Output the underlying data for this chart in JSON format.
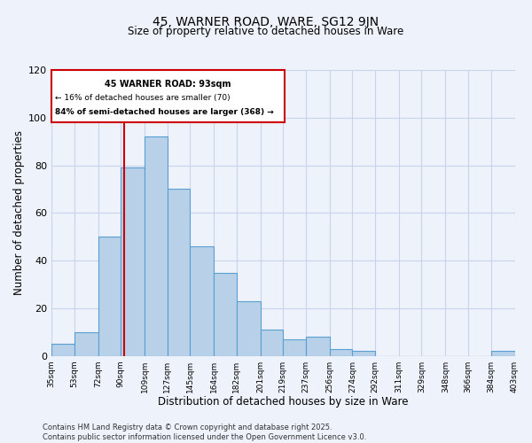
{
  "title_line1": "45, WARNER ROAD, WARE, SG12 9JN",
  "title_line2": "Size of property relative to detached houses in Ware",
  "xlabel": "Distribution of detached houses by size in Ware",
  "ylabel": "Number of detached properties",
  "bar_color": "#b8d0e8",
  "bar_edge_color": "#5a9fd4",
  "background_color": "#eef2fa",
  "grid_color": "#c8d4ee",
  "vline_x": 93,
  "vline_color": "#cc0000",
  "annotation_title": "45 WARNER ROAD: 93sqm",
  "annotation_line2": "← 16% of detached houses are smaller (70)",
  "annotation_line3": "84% of semi-detached houses are larger (368) →",
  "annotation_box_color": "#cc0000",
  "footer_line1": "Contains HM Land Registry data © Crown copyright and database right 2025.",
  "footer_line2": "Contains public sector information licensed under the Open Government Licence v3.0.",
  "bin_edges": [
    35,
    53,
    72,
    90,
    109,
    127,
    145,
    164,
    182,
    201,
    219,
    237,
    256,
    274,
    292,
    311,
    329,
    348,
    366,
    384,
    403
  ],
  "bin_counts": [
    5,
    10,
    50,
    79,
    92,
    70,
    46,
    35,
    23,
    11,
    7,
    8,
    3,
    2,
    0,
    0,
    0,
    0,
    0,
    2
  ],
  "xlim_left": 35,
  "xlim_right": 403,
  "ylim_top": 120,
  "yticks": [
    0,
    20,
    40,
    60,
    80,
    100,
    120
  ],
  "tick_labels": [
    "35sqm",
    "53sqm",
    "72sqm",
    "90sqm",
    "109sqm",
    "127sqm",
    "145sqm",
    "164sqm",
    "182sqm",
    "201sqm",
    "219sqm",
    "237sqm",
    "256sqm",
    "274sqm",
    "292sqm",
    "311sqm",
    "329sqm",
    "348sqm",
    "366sqm",
    "384sqm",
    "403sqm"
  ]
}
